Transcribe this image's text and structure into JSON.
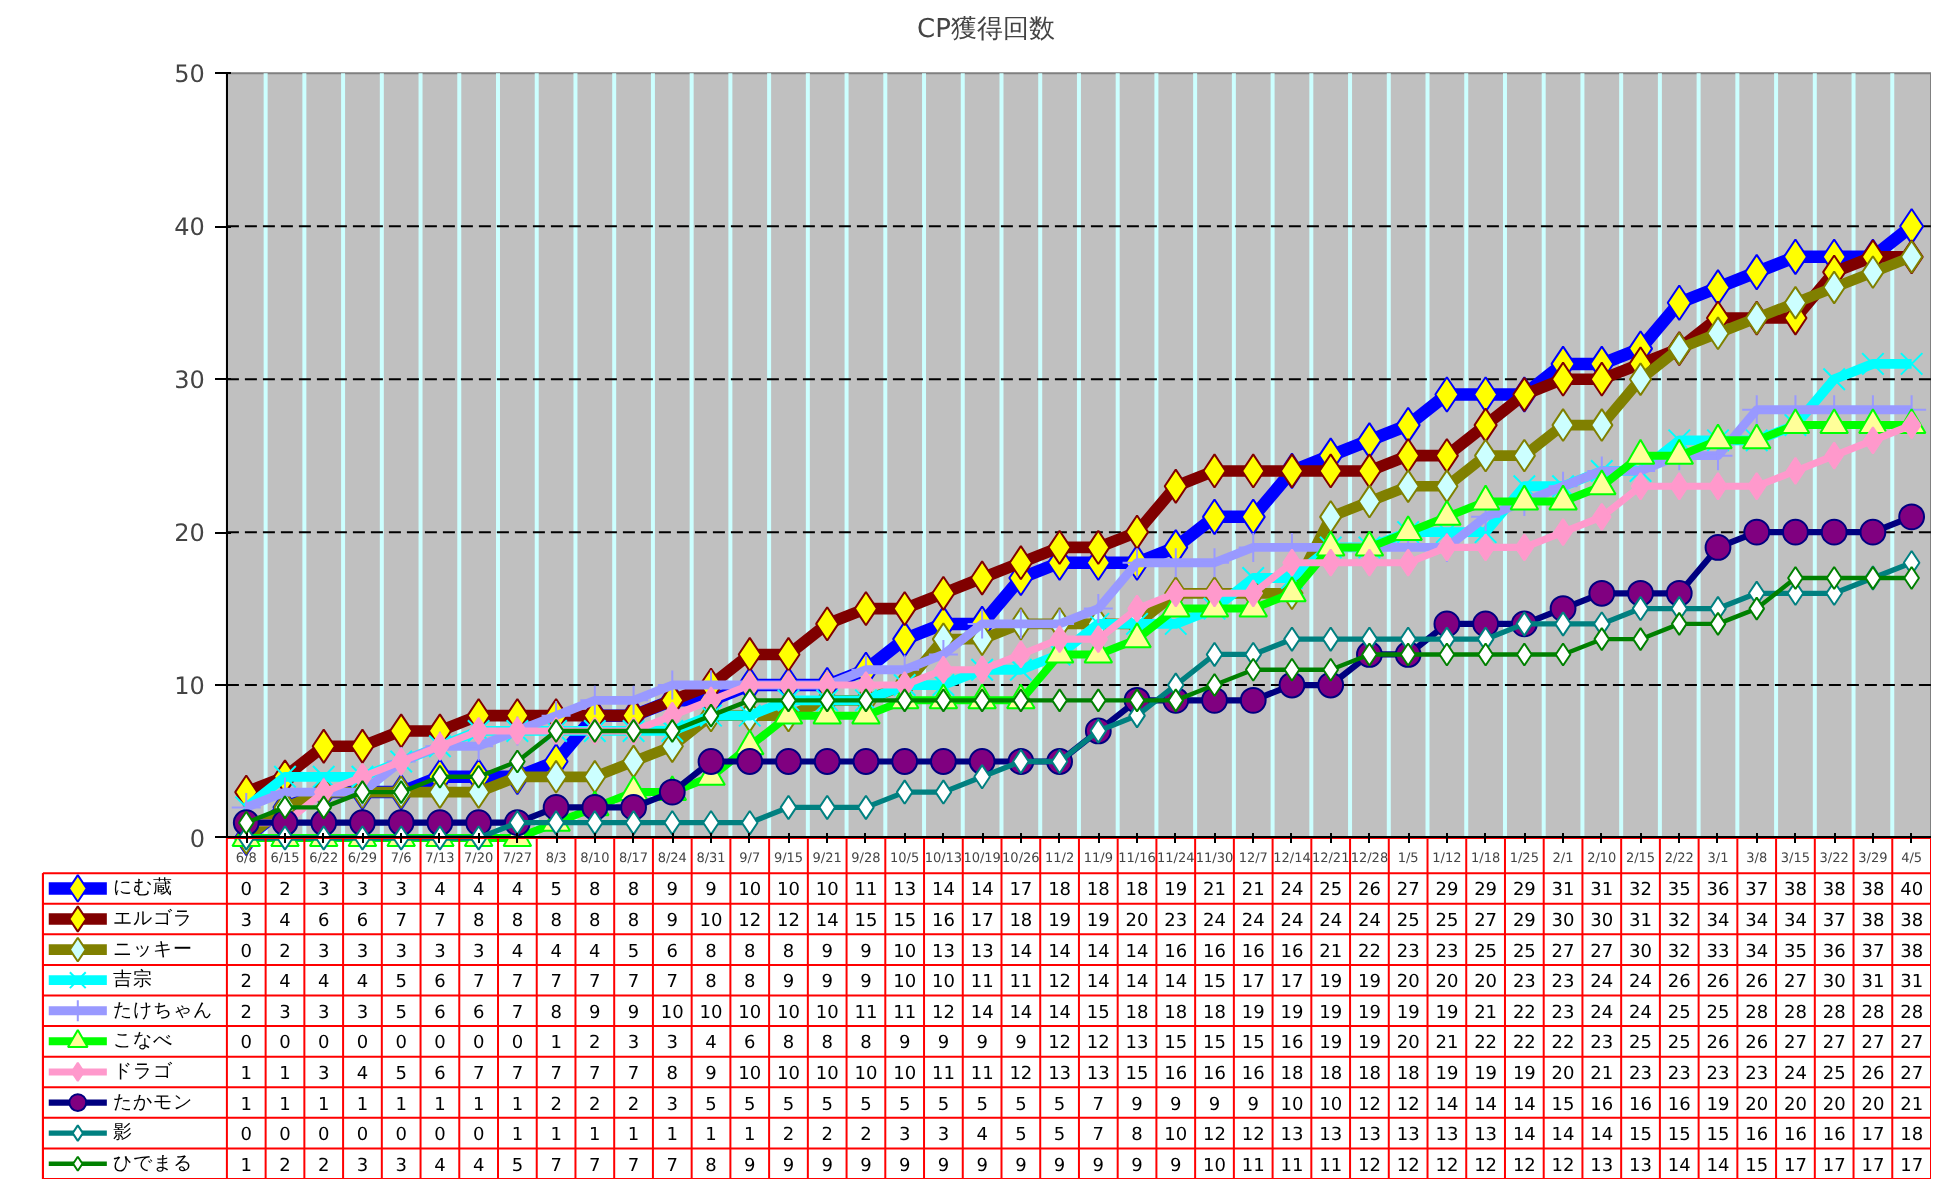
{
  "chart_data": {
    "type": "line",
    "title": "CP獲得回数",
    "categories": [
      "6/8",
      "6/15",
      "6/22",
      "6/29",
      "7/6",
      "7/13",
      "7/20",
      "7/27",
      "8/3",
      "8/10",
      "8/17",
      "8/24",
      "8/31",
      "9/7",
      "9/15",
      "9/21",
      "9/28",
      "10/5",
      "10/13",
      "10/19",
      "10/26",
      "11/2",
      "11/9",
      "11/16",
      "11/24",
      "11/30",
      "12/7",
      "12/14",
      "12/21",
      "12/28",
      "1/5",
      "1/12",
      "1/18",
      "1/25",
      "2/1",
      "2/10",
      "2/15",
      "2/22",
      "3/1",
      "3/8",
      "3/15",
      "3/22",
      "3/29",
      "4/5"
    ],
    "ylim": [
      0,
      50
    ],
    "yticks": [
      0,
      10,
      20,
      30,
      40,
      50
    ],
    "grid": true,
    "legend": "bottom",
    "data_labels": true,
    "series": [
      {
        "name": "にむ蔵",
        "color": "#0000ff",
        "marker": "diamond",
        "values": [
          0,
          2,
          3,
          3,
          3,
          4,
          4,
          4,
          5,
          8,
          8,
          9,
          9,
          10,
          10,
          10,
          11,
          13,
          14,
          14,
          17,
          18,
          18,
          18,
          19,
          21,
          21,
          24,
          25,
          26,
          27,
          29,
          29,
          29,
          31,
          31,
          32,
          35,
          36,
          37,
          38,
          38,
          38,
          40
        ]
      },
      {
        "name": "エルゴラ",
        "color": "#800000",
        "marker": "diamond",
        "values": [
          3,
          4,
          6,
          6,
          7,
          7,
          8,
          8,
          8,
          8,
          8,
          9,
          10,
          12,
          12,
          14,
          15,
          15,
          16,
          17,
          18,
          19,
          19,
          20,
          23,
          24,
          24,
          24,
          24,
          24,
          25,
          25,
          27,
          29,
          30,
          30,
          31,
          32,
          34,
          34,
          34,
          37,
          38,
          38
        ]
      },
      {
        "name": "ニッキー",
        "color": "#808000",
        "marker": "diamond",
        "values": [
          0,
          2,
          3,
          3,
          3,
          3,
          3,
          4,
          4,
          4,
          5,
          6,
          8,
          8,
          8,
          9,
          9,
          10,
          13,
          13,
          14,
          14,
          14,
          14,
          16,
          16,
          16,
          16,
          21,
          22,
          23,
          23,
          25,
          25,
          27,
          27,
          30,
          32,
          33,
          34,
          35,
          36,
          37,
          38
        ]
      },
      {
        "name": "吉宗",
        "color": "#00ffff",
        "marker": "x",
        "values": [
          2,
          4,
          4,
          4,
          5,
          6,
          7,
          7,
          7,
          7,
          7,
          7,
          8,
          8,
          9,
          9,
          9,
          10,
          10,
          11,
          11,
          12,
          14,
          14,
          14,
          15,
          17,
          17,
          19,
          19,
          20,
          20,
          20,
          23,
          23,
          24,
          24,
          26,
          26,
          26,
          27,
          30,
          31,
          31
        ]
      },
      {
        "name": "たけちゃん",
        "color": "#9999ff",
        "marker": "cross",
        "values": [
          2,
          3,
          3,
          3,
          5,
          6,
          6,
          7,
          8,
          9,
          9,
          10,
          10,
          10,
          10,
          10,
          11,
          11,
          12,
          14,
          14,
          14,
          15,
          18,
          18,
          18,
          19,
          19,
          19,
          19,
          19,
          19,
          21,
          22,
          23,
          24,
          24,
          25,
          25,
          28,
          28,
          28,
          28,
          28
        ]
      },
      {
        "name": "こなべ",
        "color": "#00ff00",
        "marker": "triangle",
        "values": [
          0,
          0,
          0,
          0,
          0,
          0,
          0,
          0,
          1,
          2,
          3,
          3,
          4,
          6,
          8,
          8,
          8,
          9,
          9,
          9,
          9,
          12,
          12,
          13,
          15,
          15,
          15,
          16,
          19,
          19,
          20,
          21,
          22,
          22,
          22,
          23,
          25,
          25,
          26,
          26,
          27,
          27,
          27,
          27
        ]
      },
      {
        "name": "ドラゴ",
        "color": "#ff99cc",
        "marker": "diamond",
        "values": [
          1,
          1,
          3,
          4,
          5,
          6,
          7,
          7,
          7,
          7,
          7,
          8,
          9,
          10,
          10,
          10,
          10,
          10,
          11,
          11,
          12,
          13,
          13,
          15,
          16,
          16,
          16,
          18,
          18,
          18,
          18,
          19,
          19,
          19,
          20,
          21,
          23,
          23,
          23,
          23,
          24,
          25,
          26,
          27
        ]
      },
      {
        "name": "たかモン",
        "color": "#000080",
        "marker": "circle",
        "values": [
          1,
          1,
          1,
          1,
          1,
          1,
          1,
          1,
          2,
          2,
          2,
          3,
          5,
          5,
          5,
          5,
          5,
          5,
          5,
          5,
          5,
          5,
          7,
          9,
          9,
          9,
          9,
          10,
          10,
          12,
          12,
          14,
          14,
          14,
          15,
          16,
          16,
          16,
          19,
          20,
          20,
          20,
          20,
          21
        ]
      },
      {
        "name": "影",
        "color": "#008080",
        "marker": "diamond",
        "values": [
          0,
          0,
          0,
          0,
          0,
          0,
          0,
          1,
          1,
          1,
          1,
          1,
          1,
          1,
          2,
          2,
          2,
          3,
          3,
          4,
          5,
          5,
          7,
          8,
          10,
          12,
          12,
          13,
          13,
          13,
          13,
          13,
          13,
          14,
          14,
          14,
          15,
          15,
          15,
          16,
          16,
          16,
          17,
          18
        ]
      },
      {
        "name": "ひでまる",
        "color": "#008000",
        "marker": "diamond",
        "values": [
          1,
          2,
          2,
          3,
          3,
          4,
          4,
          5,
          7,
          7,
          7,
          7,
          8,
          9,
          9,
          9,
          9,
          9,
          9,
          9,
          9,
          9,
          9,
          9,
          9,
          10,
          11,
          11,
          11,
          12,
          12,
          12,
          12,
          12,
          12,
          13,
          13,
          14,
          14,
          15,
          17,
          17,
          17,
          17
        ]
      }
    ]
  }
}
